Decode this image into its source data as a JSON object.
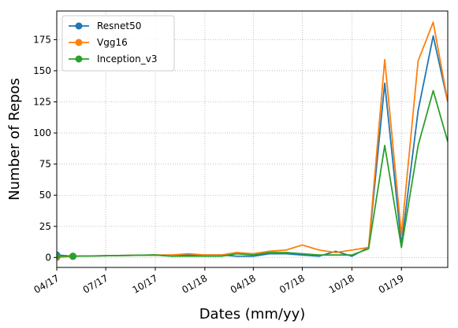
{
  "chart_data": {
    "type": "line",
    "title": "",
    "xlabel": "Dates (mm/yy)",
    "ylabel": "Number of Repos",
    "x_ticks": [
      {
        "date": "2017-04-01",
        "label": "04/17"
      },
      {
        "date": "2017-07-01",
        "label": "07/17"
      },
      {
        "date": "2017-10-01",
        "label": "10/17"
      },
      {
        "date": "2018-01-01",
        "label": "01/18"
      },
      {
        "date": "2018-04-01",
        "label": "04/18"
      },
      {
        "date": "2018-07-01",
        "label": "07/18"
      },
      {
        "date": "2018-10-01",
        "label": "10/18"
      },
      {
        "date": "2019-01-01",
        "label": "01/19"
      }
    ],
    "xlim": [
      "2017-04-01",
      "2019-03-28"
    ],
    "y_ticks": [
      0,
      25,
      50,
      75,
      100,
      125,
      150,
      175
    ],
    "ylim": [
      -8,
      198
    ],
    "grid": true,
    "legend_position": "top-left",
    "series": [
      {
        "name": "Resnet50",
        "color": "#1f77b4",
        "points": [
          {
            "x": "2017-04-01",
            "y": 2
          },
          {
            "x": "2017-05-01",
            "y": 1
          },
          {
            "x": "2017-10-01",
            "y": 2
          },
          {
            "x": "2017-11-01",
            "y": 1
          },
          {
            "x": "2017-12-01",
            "y": 2
          },
          {
            "x": "2018-01-01",
            "y": 2
          },
          {
            "x": "2018-02-01",
            "y": 2
          },
          {
            "x": "2018-03-01",
            "y": 1
          },
          {
            "x": "2018-04-01",
            "y": 1
          },
          {
            "x": "2018-05-01",
            "y": 3
          },
          {
            "x": "2018-06-01",
            "y": 3
          },
          {
            "x": "2018-07-01",
            "y": 2
          },
          {
            "x": "2018-08-01",
            "y": 1
          },
          {
            "x": "2018-09-01",
            "y": 5
          },
          {
            "x": "2018-10-01",
            "y": 1
          },
          {
            "x": "2018-11-01",
            "y": 8
          },
          {
            "x": "2018-12-01",
            "y": 140
          },
          {
            "x": "2019-01-01",
            "y": 10
          },
          {
            "x": "2019-02-01",
            "y": 118
          },
          {
            "x": "2019-03-01",
            "y": 178
          },
          {
            "x": "2019-03-28",
            "y": 125
          }
        ]
      },
      {
        "name": "Vgg16",
        "color": "#ff7f0e",
        "points": [
          {
            "x": "2017-04-01",
            "y": 0
          },
          {
            "x": "2017-05-01",
            "y": 1
          },
          {
            "x": "2017-10-01",
            "y": 2
          },
          {
            "x": "2017-11-01",
            "y": 2
          },
          {
            "x": "2017-12-01",
            "y": 3
          },
          {
            "x": "2018-01-01",
            "y": 2
          },
          {
            "x": "2018-02-01",
            "y": 2
          },
          {
            "x": "2018-03-01",
            "y": 4
          },
          {
            "x": "2018-04-01",
            "y": 3
          },
          {
            "x": "2018-05-01",
            "y": 5
          },
          {
            "x": "2018-06-01",
            "y": 6
          },
          {
            "x": "2018-07-01",
            "y": 10
          },
          {
            "x": "2018-08-01",
            "y": 6
          },
          {
            "x": "2018-09-01",
            "y": 4
          },
          {
            "x": "2018-10-01",
            "y": 6
          },
          {
            "x": "2018-11-01",
            "y": 8
          },
          {
            "x": "2018-12-01",
            "y": 159
          },
          {
            "x": "2019-01-01",
            "y": 18
          },
          {
            "x": "2019-02-01",
            "y": 158
          },
          {
            "x": "2019-03-01",
            "y": 189
          },
          {
            "x": "2019-03-28",
            "y": 125
          }
        ]
      },
      {
        "name": "Inception_v3",
        "color": "#2ca02c",
        "points": [
          {
            "x": "2017-04-01",
            "y": 1
          },
          {
            "x": "2017-05-01",
            "y": 1
          },
          {
            "x": "2017-10-01",
            "y": 2
          },
          {
            "x": "2017-11-01",
            "y": 1
          },
          {
            "x": "2017-12-01",
            "y": 1
          },
          {
            "x": "2018-01-01",
            "y": 1
          },
          {
            "x": "2018-02-01",
            "y": 1
          },
          {
            "x": "2018-03-01",
            "y": 3
          },
          {
            "x": "2018-04-01",
            "y": 2
          },
          {
            "x": "2018-05-01",
            "y": 4
          },
          {
            "x": "2018-06-01",
            "y": 4
          },
          {
            "x": "2018-07-01",
            "y": 3
          },
          {
            "x": "2018-08-01",
            "y": 2
          },
          {
            "x": "2018-09-01",
            "y": 2
          },
          {
            "x": "2018-10-01",
            "y": 2
          },
          {
            "x": "2018-11-01",
            "y": 7
          },
          {
            "x": "2018-12-01",
            "y": 90
          },
          {
            "x": "2019-01-01",
            "y": 8
          },
          {
            "x": "2019-02-01",
            "y": 90
          },
          {
            "x": "2019-03-01",
            "y": 134
          },
          {
            "x": "2019-03-28",
            "y": 93
          }
        ]
      }
    ]
  }
}
